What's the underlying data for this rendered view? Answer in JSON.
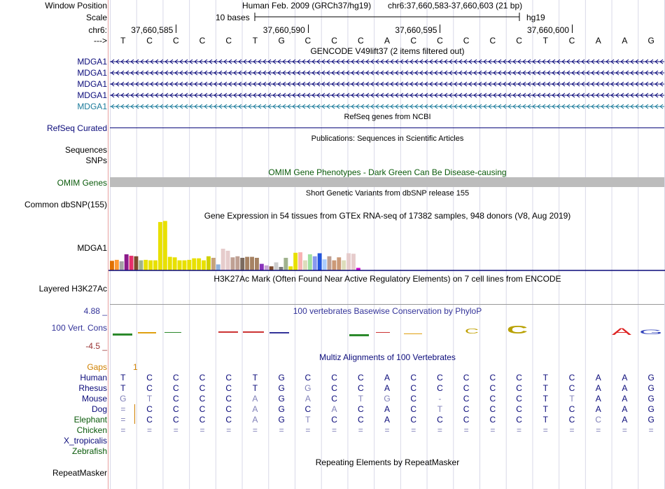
{
  "bases": [
    "T",
    "C",
    "C",
    "C",
    "C",
    "T",
    "G",
    "C",
    "C",
    "C",
    "A",
    "C",
    "C",
    "C",
    "C",
    "C",
    "T",
    "C",
    "A",
    "A",
    "G"
  ],
  "header": {
    "window_position_label": "Window Position",
    "assembly_text": "Human Feb. 2009 (GRCh37/hg19)",
    "position_text": "chr6:37,660,583-37,660,603 (21 bp)",
    "scale_label": "Scale",
    "scale_text": "10 bases",
    "db_text": "hg19",
    "chrom_label": "chr6:",
    "coords": [
      "37,660,585",
      "37,660,590",
      "37,660,595",
      "37,660,600"
    ],
    "strand_label": "--->"
  },
  "tracks": {
    "gencode_title": "GENCODE V49lift37 (2 items filtered out)",
    "gencode_items": [
      "MDGA1",
      "MDGA1",
      "MDGA1",
      "MDGA1",
      "MDGA1"
    ],
    "refseq_title": "RefSeq genes from NCBI",
    "refseq_label": "RefSeq Curated",
    "pubs_title": "Publications: Sequences in Scientific Articles",
    "sequences_label": "Sequences",
    "snps_label": "SNPs",
    "omim_title": "OMIM Gene Phenotypes - Dark Green Can Be Disease-causing",
    "omim_label": "OMIM Genes",
    "dbsnp_title": "Short Genetic Variants from dbSNP release 155",
    "dbsnp_label": "Common dbSNP(155)",
    "gtex_title": "Gene Expression in 54 tissues from GTEx RNA-seq of 17382 samples, 948 donors (V8, Aug 2019)",
    "gtex_label": "MDGA1",
    "h3k27_title": "H3K27Ac Mark (Often Found Near Active Regulatory Elements) on 7 cell lines from ENCODE",
    "h3k27_label": "Layered H3K27Ac",
    "phylop_title": "100 vertebrates Basewise Conservation by PhyloP",
    "phylop_label": "100 Vert. Cons",
    "phylop_max": "4.88 _",
    "phylop_min": "-4.5 _",
    "multiz_title": "Multiz Alignments of 100 Vertebrates",
    "gaps_label": "Gaps",
    "gap_count": "1",
    "rmsk_title": "Repeating Elements by RepeatMasker",
    "rmsk_label": "RepeatMasker"
  },
  "gtex_expression": [
    {
      "value": 1.9,
      "color": "#E07000"
    },
    {
      "value": 2.1,
      "color": "#FF9933"
    },
    {
      "value": 1.8,
      "color": "#A4A4A4"
    },
    {
      "value": 3.2,
      "color": "#8B1A8B"
    },
    {
      "value": 2.9,
      "color": "#E62E6B"
    },
    {
      "value": 2.8,
      "color": "#7B4A2E"
    },
    {
      "value": 2.0,
      "color": "#A0B28E"
    },
    {
      "value": 2.1,
      "color": "#E8E000"
    },
    {
      "value": 2.0,
      "color": "#E8E000"
    },
    {
      "value": 2.0,
      "color": "#E8E000"
    },
    {
      "value": 9.6,
      "color": "#E8E000"
    },
    {
      "value": 9.8,
      "color": "#E8E000"
    },
    {
      "value": 2.7,
      "color": "#E8E000"
    },
    {
      "value": 2.6,
      "color": "#E8E000"
    },
    {
      "value": 2.0,
      "color": "#E8E000"
    },
    {
      "value": 2.0,
      "color": "#E8E000"
    },
    {
      "value": 2.1,
      "color": "#E8E000"
    },
    {
      "value": 2.4,
      "color": "#E8E000"
    },
    {
      "value": 2.4,
      "color": "#E8E000"
    },
    {
      "value": 2.0,
      "color": "#E8E000"
    },
    {
      "value": 2.8,
      "color": "#D1D100"
    },
    {
      "value": 2.5,
      "color": "#C6A27A"
    },
    {
      "value": 1.2,
      "color": "#8FB1DA"
    },
    {
      "value": 4.3,
      "color": "#E6CCCC"
    },
    {
      "value": 3.9,
      "color": "#E6CCCC"
    },
    {
      "value": 2.6,
      "color": "#BFA093"
    },
    {
      "value": 2.8,
      "color": "#BFA093"
    },
    {
      "value": 2.5,
      "color": "#7B6A5E"
    },
    {
      "value": 2.7,
      "color": "#A68263"
    },
    {
      "value": 2.7,
      "color": "#A68263"
    },
    {
      "value": 2.5,
      "color": "#A68263"
    },
    {
      "value": 1.3,
      "color": "#8833BB"
    },
    {
      "value": 1.0,
      "color": "#C8A6D6"
    },
    {
      "value": 0.8,
      "color": "#7B4A2E"
    },
    {
      "value": 1.6,
      "color": "#CCCCCC"
    },
    {
      "value": 0.7,
      "color": "#7B7B7B"
    },
    {
      "value": 2.5,
      "color": "#A0B28E"
    },
    {
      "value": 0.8,
      "color": "#E8E000"
    },
    {
      "value": 3.5,
      "color": "#E8E000"
    },
    {
      "value": 3.6,
      "color": "#F8B3B3"
    },
    {
      "value": 2.0,
      "color": "#DDDDBB"
    },
    {
      "value": 3.2,
      "color": "#A0E0A0"
    },
    {
      "value": 2.8,
      "color": "#8899EE"
    },
    {
      "value": 3.4,
      "color": "#2255DD"
    },
    {
      "value": 2.2,
      "color": "#AACCFF"
    },
    {
      "value": 2.8,
      "color": "#BFA093"
    },
    {
      "value": 2.0,
      "color": "#CC9977"
    },
    {
      "value": 2.6,
      "color": "#CC9977"
    },
    {
      "value": 2.0,
      "color": "#DDDDBB"
    },
    {
      "value": 3.4,
      "color": "#E6CCCC"
    },
    {
      "value": 3.3,
      "color": "#E6CCCC"
    },
    {
      "value": 0.5,
      "color": "#CC00CC"
    }
  ],
  "alignment": {
    "species": [
      {
        "name": "Human",
        "color": "#0a0a7a",
        "bases": [
          "T",
          "C",
          "C",
          "C",
          "C",
          "T",
          "G",
          "C",
          "C",
          "C",
          "A",
          "C",
          "C",
          "C",
          "C",
          "C",
          "T",
          "C",
          "A",
          "A",
          "G"
        ]
      },
      {
        "name": "Rhesus",
        "color": "#0a0a7a",
        "bases": [
          "T",
          "C",
          "C",
          "C",
          "C",
          "T",
          "G",
          "G",
          "C",
          "C",
          "A",
          "C",
          "C",
          "C",
          "C",
          "C",
          "T",
          "C",
          "A",
          "A",
          "G"
        ]
      },
      {
        "name": "Mouse",
        "color": "#0a0a7a",
        "bases": [
          "G",
          "T",
          "C",
          "C",
          "C",
          "A",
          "G",
          "A",
          "C",
          "T",
          "G",
          "C",
          "-",
          "C",
          "C",
          "C",
          "T",
          "T",
          "A",
          "A",
          "G"
        ]
      },
      {
        "name": "Dog",
        "color": "#0a0a7a",
        "bases": [
          "=",
          "C",
          "C",
          "C",
          "C",
          "A",
          "G",
          "C",
          "A",
          "C",
          "A",
          "C",
          "T",
          "C",
          "C",
          "C",
          "T",
          "C",
          "A",
          "A",
          "G"
        ]
      },
      {
        "name": "Elephant",
        "color": "#0a5a0a",
        "bases": [
          "=",
          "C",
          "C",
          "C",
          "C",
          "A",
          "G",
          "T",
          "C",
          "C",
          "A",
          "C",
          "C",
          "C",
          "C",
          "C",
          "T",
          "C",
          "C",
          "A",
          "G"
        ]
      },
      {
        "name": "Chicken",
        "color": "#0a5a0a",
        "bases": [
          "=",
          "=",
          "=",
          "=",
          "=",
          "=",
          "=",
          "=",
          "=",
          "=",
          "=",
          "=",
          "=",
          "=",
          "=",
          "=",
          "=",
          "=",
          "=",
          "=",
          "="
        ]
      },
      {
        "name": "X_tropicalis",
        "color": "#0a0a7a",
        "bases": []
      },
      {
        "name": "Zebrafish",
        "color": "#0a5a0a",
        "bases": []
      }
    ]
  },
  "colors": {
    "track_label": "#0a0a7a",
    "gencode_last": "#1a7a9a",
    "omim_label": "#0a5a0a",
    "phylop_title": "#333399",
    "phylop_max": "#333399",
    "phylop_min": "#993333",
    "gaps": "#d08000"
  }
}
